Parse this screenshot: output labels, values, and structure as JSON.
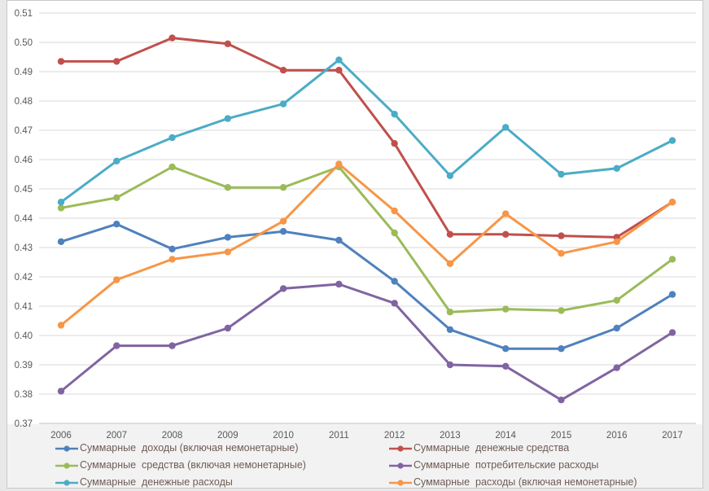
{
  "chart_data": {
    "type": "line",
    "x": [
      2006,
      2007,
      2008,
      2009,
      2010,
      2011,
      2012,
      2013,
      2014,
      2015,
      2016,
      2017
    ],
    "series": [
      {
        "name": "Суммарные  доходы (включая немонетарные)",
        "color": "#4F81BD",
        "values": [
          0.432,
          0.438,
          0.4295,
          0.4335,
          0.4355,
          0.4325,
          0.4185,
          0.402,
          0.3955,
          0.3955,
          0.4025,
          0.414
        ]
      },
      {
        "name": "Суммарные  денежные средства",
        "color": "#C0504D",
        "values": [
          0.4935,
          0.4935,
          0.5015,
          0.4995,
          0.4905,
          0.4905,
          0.4655,
          0.4345,
          0.4345,
          0.434,
          0.4335,
          0.4455
        ]
      },
      {
        "name": "Суммарные  средства (включая немонетарные)",
        "color": "#9BBB59",
        "values": [
          0.4435,
          0.447,
          0.4575,
          0.4505,
          0.4505,
          0.4575,
          0.435,
          0.408,
          0.409,
          0.4085,
          0.412,
          0.426
        ]
      },
      {
        "name": "Суммарные  потребительские расходы",
        "color": "#8064A2",
        "values": [
          0.381,
          0.3965,
          0.3965,
          0.4025,
          0.416,
          0.4175,
          0.411,
          0.39,
          0.3895,
          0.378,
          0.389,
          0.401
        ]
      },
      {
        "name": "Суммарные  денежные расходы",
        "color": "#4BACC6",
        "values": [
          0.4455,
          0.4595,
          0.4675,
          0.474,
          0.479,
          0.494,
          0.4755,
          0.4545,
          0.471,
          0.455,
          0.457,
          0.4665
        ]
      },
      {
        "name": "Суммарные  расходы (включая немонетарные)",
        "color": "#F79646",
        "values": [
          0.4035,
          0.419,
          0.426,
          0.4285,
          0.439,
          0.4585,
          0.4425,
          0.4245,
          0.4415,
          0.428,
          0.432,
          0.4455
        ]
      }
    ],
    "title": "",
    "xlabel": "",
    "ylabel": "",
    "ylim": [
      0.37,
      0.51
    ],
    "ytick_step": 0.01,
    "grid": "horizontal",
    "legend_position": "bottom"
  },
  "axis": {
    "y_labels": [
      "0.51",
      "0.50",
      "0.49",
      "0.48",
      "0.47",
      "0.46",
      "0.45",
      "0.44",
      "0.43",
      "0.42",
      "0.41",
      "0.40",
      "0.39",
      "0.38",
      "0.37"
    ],
    "x_labels": [
      "2006",
      "2007",
      "2008",
      "2009",
      "2010",
      "2011",
      "2012",
      "2013",
      "2014",
      "2015",
      "2016",
      "2017"
    ]
  },
  "style": {
    "gridline_color": "#d9d9d9",
    "axis_line_color": "#bfbfbf",
    "tick_label_color": "#595959",
    "legend_text_color": "#6e5b55",
    "plot_background": "#ffffff",
    "footer_band_color": "#f2f2f2"
  }
}
